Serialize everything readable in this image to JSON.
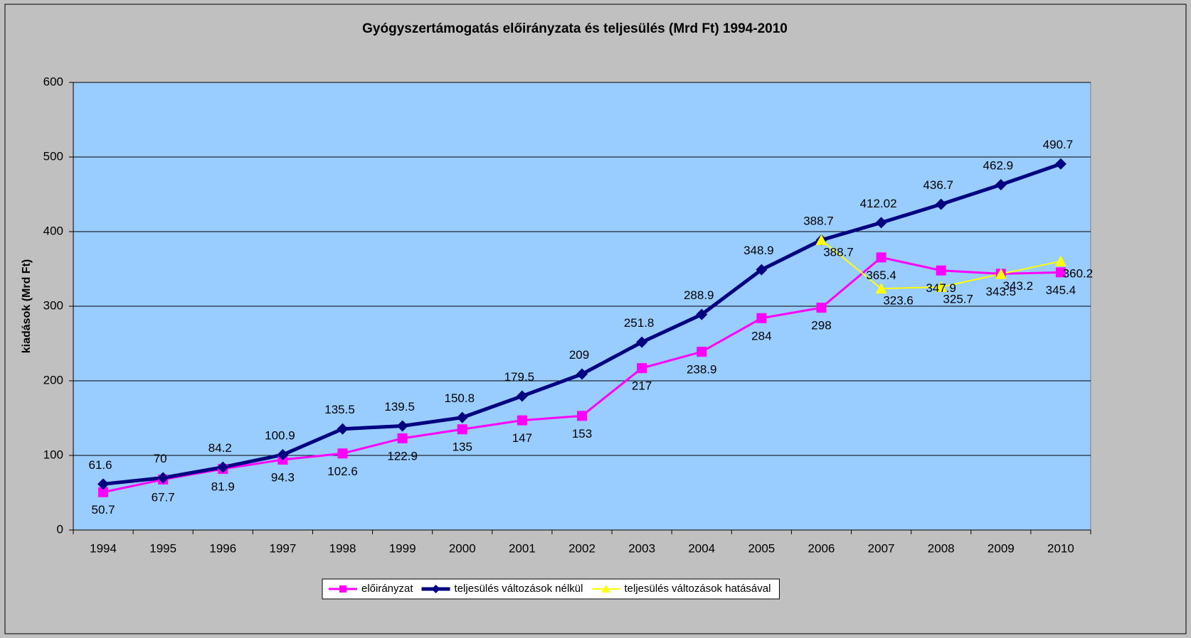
{
  "chart_data": {
    "type": "line",
    "title": "Gyógyszertámogatás előirányzata és teljesülés (Mrd Ft) 1994-2010",
    "y_label": "kiadások (Mrd Ft)",
    "categories": [
      "1994",
      "1995",
      "1996",
      "1997",
      "1998",
      "1999",
      "2000",
      "2001",
      "2002",
      "2003",
      "2004",
      "2005",
      "2006",
      "2007",
      "2008",
      "2009",
      "2010"
    ],
    "series": [
      {
        "name": "előirányzat",
        "color": "#FF00FF",
        "marker": "square",
        "values": [
          50.7,
          67.7,
          81.9,
          94.3,
          102.6,
          122.9,
          135,
          147,
          153,
          217,
          238.9,
          284,
          298,
          365.4,
          347.9,
          343.5,
          345.4
        ]
      },
      {
        "name": "teljesülés változások nélkül",
        "color": "#000080",
        "marker": "diamond",
        "values": [
          61.6,
          70,
          84.2,
          100.9,
          135.5,
          139.5,
          150.8,
          179.5,
          209,
          251.8,
          288.9,
          348.9,
          388.7,
          412.02,
          436.7,
          462.9,
          490.7
        ]
      },
      {
        "name": "teljesülés változások hatásával",
        "color": "#FFFF00",
        "marker": "triangle",
        "values": [
          null,
          null,
          null,
          null,
          null,
          null,
          null,
          null,
          null,
          null,
          null,
          null,
          388.7,
          323.6,
          325.7,
          343.2,
          360.2
        ]
      }
    ],
    "ylim": [
      0,
      600
    ],
    "yticks": [
      0,
      100,
      200,
      300,
      400,
      500,
      600
    ],
    "grid": true,
    "legend": "bottom"
  }
}
